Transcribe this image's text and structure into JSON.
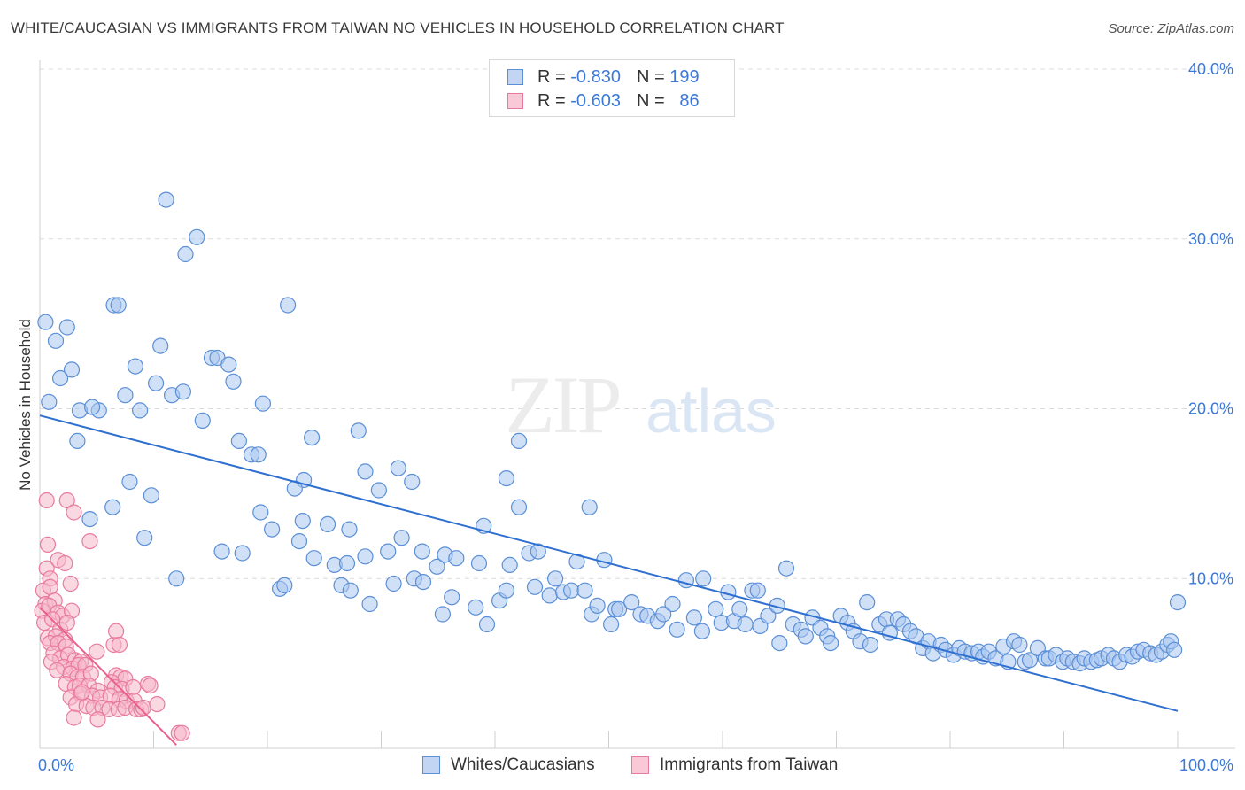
{
  "title": "WHITE/CAUCASIAN VS IMMIGRANTS FROM TAIWAN NO VEHICLES IN HOUSEHOLD CORRELATION CHART",
  "source": "Source: ZipAtlas.com",
  "watermark": {
    "zip": "ZIP",
    "atlas": "atlas"
  },
  "legend": {
    "rows": [
      {
        "r_label": "R =",
        "r_value": "-0.830",
        "n_label": "N =",
        "n_value": "199"
      },
      {
        "r_label": "R =",
        "r_value": "-0.603",
        "n_label": "N =",
        "n_value": "86"
      }
    ]
  },
  "bottom_legend": [
    "Whites/Caucasians",
    "Immigrants from Taiwan"
  ],
  "colors": {
    "blue_fill": "#a9c6f0",
    "blue_stroke": "#5b8fd6",
    "blue_line": "#2e6fd0",
    "pink_fill": "#f6b8cb",
    "pink_stroke": "#e97a9f",
    "pink_line": "#e9608d",
    "tick_text": "#3b78d8",
    "grid": "#dcdcdc"
  },
  "chart_data": {
    "type": "scatter",
    "title": "WHITE/CAUCASIAN VS IMMIGRANTS FROM TAIWAN NO VEHICLES IN HOUSEHOLD CORRELATION CHART",
    "xlabel": "",
    "ylabel": "No Vehicles in Household",
    "xlim": [
      0,
      100
    ],
    "ylim": [
      0,
      40
    ],
    "x_tick_labels": [
      "0.0%",
      "100.0%"
    ],
    "y_tick_labels": [
      "10.0%",
      "20.0%",
      "30.0%",
      "40.0%"
    ],
    "y_ticks": [
      10,
      20,
      30,
      40
    ],
    "grid": true,
    "legend_position": "top-center",
    "series": [
      {
        "name": "Whites/Caucasians",
        "r": -0.83,
        "n": 199,
        "trend": [
          [
            0,
            19.6
          ],
          [
            100,
            2.2
          ]
        ],
        "points": [
          [
            0.5,
            25.1
          ],
          [
            1.4,
            24.0
          ],
          [
            2.4,
            24.8
          ],
          [
            0.8,
            20.4
          ],
          [
            2.8,
            22.3
          ],
          [
            1.8,
            21.8
          ],
          [
            3.5,
            19.9
          ],
          [
            5.2,
            19.9
          ],
          [
            4.6,
            20.1
          ],
          [
            3.3,
            18.1
          ],
          [
            6.5,
            26.1
          ],
          [
            6.9,
            26.1
          ],
          [
            11.1,
            32.3
          ],
          [
            12.8,
            29.1
          ],
          [
            13.8,
            30.1
          ],
          [
            10.6,
            23.7
          ],
          [
            8.4,
            22.5
          ],
          [
            10.2,
            21.5
          ],
          [
            11.6,
            20.8
          ],
          [
            12.6,
            21.0
          ],
          [
            14.3,
            19.3
          ],
          [
            15.1,
            23.0
          ],
          [
            15.6,
            23.0
          ],
          [
            16.6,
            22.6
          ],
          [
            17.0,
            21.6
          ],
          [
            8.8,
            19.9
          ],
          [
            7.5,
            20.8
          ],
          [
            17.5,
            18.1
          ],
          [
            18.6,
            17.3
          ],
          [
            19.2,
            17.3
          ],
          [
            19.6,
            20.3
          ],
          [
            21.8,
            26.1
          ],
          [
            23.9,
            18.3
          ],
          [
            28.0,
            18.7
          ],
          [
            28.6,
            16.3
          ],
          [
            31.5,
            16.5
          ],
          [
            32.7,
            15.7
          ],
          [
            23.2,
            15.8
          ],
          [
            22.4,
            15.3
          ],
          [
            29.8,
            15.2
          ],
          [
            7.9,
            15.7
          ],
          [
            9.8,
            14.9
          ],
          [
            6.4,
            14.2
          ],
          [
            4.4,
            13.5
          ],
          [
            9.2,
            12.4
          ],
          [
            16.0,
            11.6
          ],
          [
            17.8,
            11.5
          ],
          [
            19.4,
            13.9
          ],
          [
            20.4,
            12.9
          ],
          [
            22.8,
            12.2
          ],
          [
            23.1,
            13.4
          ],
          [
            25.3,
            13.2
          ],
          [
            27.2,
            12.9
          ],
          [
            24.1,
            11.2
          ],
          [
            25.9,
            10.8
          ],
          [
            27.0,
            10.9
          ],
          [
            28.6,
            11.3
          ],
          [
            30.6,
            11.6
          ],
          [
            31.8,
            12.4
          ],
          [
            33.6,
            11.6
          ],
          [
            34.9,
            10.7
          ],
          [
            35.6,
            11.4
          ],
          [
            36.6,
            11.2
          ],
          [
            38.6,
            10.9
          ],
          [
            39.0,
            13.1
          ],
          [
            41.0,
            15.9
          ],
          [
            42.1,
            14.2
          ],
          [
            42.1,
            18.1
          ],
          [
            43.0,
            11.5
          ],
          [
            43.8,
            11.6
          ],
          [
            41.3,
            10.8
          ],
          [
            47.2,
            11.0
          ],
          [
            48.3,
            14.2
          ],
          [
            49.6,
            11.1
          ],
          [
            12.0,
            10.0
          ],
          [
            21.1,
            9.4
          ],
          [
            21.5,
            9.6
          ],
          [
            26.5,
            9.6
          ],
          [
            27.3,
            9.3
          ],
          [
            29.0,
            8.5
          ],
          [
            31.1,
            9.7
          ],
          [
            32.9,
            10.0
          ],
          [
            33.7,
            9.8
          ],
          [
            35.4,
            7.9
          ],
          [
            36.2,
            8.9
          ],
          [
            38.3,
            8.3
          ],
          [
            39.3,
            7.3
          ],
          [
            40.4,
            8.7
          ],
          [
            41.0,
            9.3
          ],
          [
            43.5,
            9.5
          ],
          [
            44.8,
            9.0
          ],
          [
            45.3,
            10.0
          ],
          [
            46.0,
            9.2
          ],
          [
            46.7,
            9.3
          ],
          [
            47.9,
            9.3
          ],
          [
            48.5,
            7.9
          ],
          [
            49.0,
            8.4
          ],
          [
            50.2,
            7.3
          ],
          [
            50.6,
            8.2
          ],
          [
            50.9,
            8.2
          ],
          [
            52.0,
            8.6
          ],
          [
            52.8,
            7.9
          ],
          [
            53.4,
            7.8
          ],
          [
            54.3,
            7.5
          ],
          [
            54.8,
            7.9
          ],
          [
            55.6,
            8.5
          ],
          [
            56.0,
            7.0
          ],
          [
            56.8,
            9.9
          ],
          [
            57.5,
            7.7
          ],
          [
            58.3,
            10.0
          ],
          [
            58.2,
            6.9
          ],
          [
            59.4,
            8.2
          ],
          [
            59.9,
            7.4
          ],
          [
            60.5,
            9.2
          ],
          [
            61.0,
            7.5
          ],
          [
            61.5,
            8.2
          ],
          [
            62.0,
            7.3
          ],
          [
            62.6,
            9.3
          ],
          [
            63.1,
            9.3
          ],
          [
            63.3,
            7.2
          ],
          [
            64.0,
            7.8
          ],
          [
            64.8,
            8.4
          ],
          [
            65.0,
            6.2
          ],
          [
            65.6,
            10.6
          ],
          [
            66.2,
            7.3
          ],
          [
            66.9,
            7.0
          ],
          [
            67.3,
            6.6
          ],
          [
            67.9,
            7.7
          ],
          [
            68.6,
            7.1
          ],
          [
            69.2,
            6.6
          ],
          [
            69.5,
            6.2
          ],
          [
            70.4,
            7.8
          ],
          [
            71.0,
            7.4
          ],
          [
            71.5,
            6.9
          ],
          [
            72.1,
            6.3
          ],
          [
            72.7,
            8.6
          ],
          [
            73.0,
            6.1
          ],
          [
            73.8,
            7.3
          ],
          [
            74.4,
            7.6
          ],
          [
            74.7,
            6.8
          ],
          [
            75.4,
            7.6
          ],
          [
            75.9,
            7.3
          ],
          [
            76.5,
            6.9
          ],
          [
            77.0,
            6.6
          ],
          [
            77.6,
            5.9
          ],
          [
            78.1,
            6.3
          ],
          [
            78.5,
            5.6
          ],
          [
            79.2,
            6.1
          ],
          [
            79.6,
            5.8
          ],
          [
            80.3,
            5.5
          ],
          [
            80.8,
            5.9
          ],
          [
            81.3,
            5.7
          ],
          [
            81.9,
            5.6
          ],
          [
            82.5,
            5.7
          ],
          [
            82.9,
            5.4
          ],
          [
            83.4,
            5.7
          ],
          [
            84.0,
            5.3
          ],
          [
            84.7,
            6.0
          ],
          [
            85.1,
            5.1
          ],
          [
            85.6,
            6.3
          ],
          [
            86.1,
            6.1
          ],
          [
            86.6,
            5.1
          ],
          [
            87.0,
            5.2
          ],
          [
            87.7,
            5.9
          ],
          [
            88.4,
            5.3
          ],
          [
            88.7,
            5.3
          ],
          [
            89.3,
            5.5
          ],
          [
            89.9,
            5.1
          ],
          [
            90.3,
            5.3
          ],
          [
            90.8,
            5.1
          ],
          [
            91.4,
            5.0
          ],
          [
            91.8,
            5.3
          ],
          [
            92.4,
            5.1
          ],
          [
            92.9,
            5.2
          ],
          [
            93.3,
            5.3
          ],
          [
            93.9,
            5.5
          ],
          [
            94.4,
            5.3
          ],
          [
            94.9,
            5.1
          ],
          [
            95.5,
            5.5
          ],
          [
            96.0,
            5.4
          ],
          [
            96.5,
            5.7
          ],
          [
            97.0,
            5.8
          ],
          [
            97.6,
            5.6
          ],
          [
            98.1,
            5.5
          ],
          [
            98.6,
            5.7
          ],
          [
            99.1,
            6.1
          ],
          [
            99.4,
            6.3
          ],
          [
            99.7,
            5.8
          ],
          [
            100.0,
            8.6
          ]
        ]
      },
      {
        "name": "Immigrants from Taiwan",
        "r": -0.603,
        "n": 86,
        "trend": [
          [
            0,
            8.3
          ],
          [
            12,
            0.2
          ]
        ],
        "points": [
          [
            0.6,
            14.6
          ],
          [
            2.4,
            14.6
          ],
          [
            3.0,
            13.9
          ],
          [
            4.4,
            12.2
          ],
          [
            0.7,
            12.0
          ],
          [
            1.6,
            11.1
          ],
          [
            2.2,
            10.9
          ],
          [
            0.6,
            10.6
          ],
          [
            0.9,
            10.0
          ],
          [
            2.7,
            9.7
          ],
          [
            0.3,
            9.3
          ],
          [
            0.9,
            9.5
          ],
          [
            0.5,
            8.5
          ],
          [
            1.3,
            8.7
          ],
          [
            0.2,
            8.1
          ],
          [
            0.8,
            8.4
          ],
          [
            1.6,
            8.0
          ],
          [
            2.0,
            7.8
          ],
          [
            2.8,
            8.1
          ],
          [
            0.4,
            7.4
          ],
          [
            1.1,
            7.6
          ],
          [
            1.8,
            7.0
          ],
          [
            2.4,
            7.4
          ],
          [
            0.7,
            6.5
          ],
          [
            1.4,
            6.6
          ],
          [
            2.2,
            6.4
          ],
          [
            0.9,
            6.2
          ],
          [
            1.6,
            6.2
          ],
          [
            2.3,
            6.0
          ],
          [
            1.2,
            5.6
          ],
          [
            1.8,
            5.3
          ],
          [
            2.5,
            5.5
          ],
          [
            3.1,
            5.2
          ],
          [
            3.6,
            5.1
          ],
          [
            1.0,
            5.1
          ],
          [
            2.1,
            4.8
          ],
          [
            2.9,
            4.7
          ],
          [
            3.4,
            4.9
          ],
          [
            4.0,
            4.9
          ],
          [
            1.5,
            4.6
          ],
          [
            2.7,
            4.4
          ],
          [
            3.3,
            4.2
          ],
          [
            3.8,
            4.2
          ],
          [
            4.5,
            4.4
          ],
          [
            6.5,
            6.1
          ],
          [
            6.7,
            6.9
          ],
          [
            7.0,
            6.1
          ],
          [
            5.0,
            5.7
          ],
          [
            6.7,
            4.3
          ],
          [
            7.1,
            4.2
          ],
          [
            7.5,
            4.1
          ],
          [
            6.3,
            3.9
          ],
          [
            2.3,
            3.8
          ],
          [
            3.1,
            3.6
          ],
          [
            3.5,
            3.7
          ],
          [
            4.3,
            3.7
          ],
          [
            5.1,
            3.4
          ],
          [
            6.6,
            3.6
          ],
          [
            7.2,
            3.5
          ],
          [
            8.2,
            3.6
          ],
          [
            9.5,
            3.8
          ],
          [
            9.7,
            3.7
          ],
          [
            2.7,
            3.0
          ],
          [
            3.6,
            3.2
          ],
          [
            4.6,
            3.1
          ],
          [
            5.3,
            3.0
          ],
          [
            6.2,
            3.1
          ],
          [
            7.0,
            2.9
          ],
          [
            7.6,
            2.8
          ],
          [
            8.3,
            2.8
          ],
          [
            3.2,
            2.6
          ],
          [
            4.1,
            2.5
          ],
          [
            4.7,
            2.4
          ],
          [
            5.5,
            2.4
          ],
          [
            6.1,
            2.3
          ],
          [
            6.9,
            2.3
          ],
          [
            7.5,
            2.4
          ],
          [
            8.5,
            2.3
          ],
          [
            8.9,
            2.3
          ],
          [
            9.1,
            2.4
          ],
          [
            10.3,
            2.6
          ],
          [
            3.0,
            1.8
          ],
          [
            5.1,
            1.7
          ],
          [
            12.2,
            0.9
          ],
          [
            12.5,
            0.9
          ],
          [
            3.7,
            3.3
          ]
        ]
      }
    ]
  }
}
